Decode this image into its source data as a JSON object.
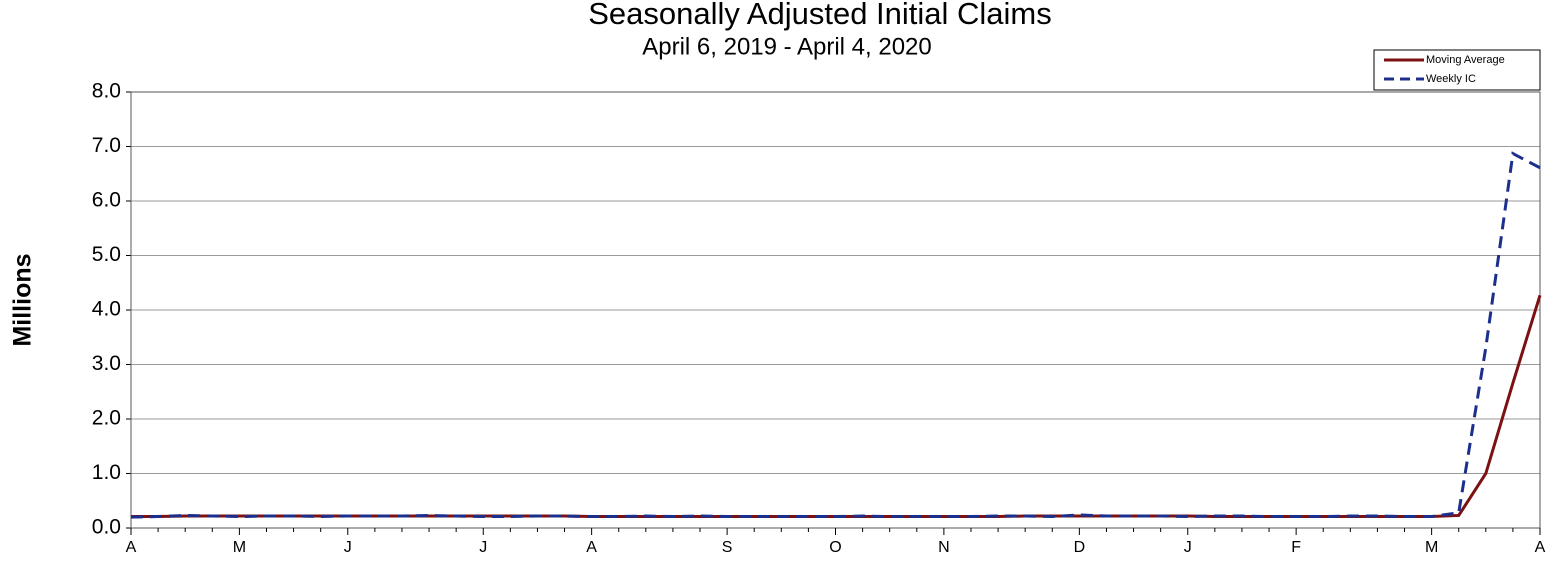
{
  "chart_data": {
    "type": "line",
    "title": "Seasonally Adjusted Initial Claims",
    "subtitle": "April 6, 2019 - April 4, 2020",
    "y_label": "Millions",
    "categories": [
      "A",
      null,
      null,
      null,
      "M",
      null,
      null,
      null,
      "J",
      null,
      null,
      null,
      null,
      "J",
      null,
      null,
      null,
      "A",
      null,
      null,
      null,
      null,
      "S",
      null,
      null,
      null,
      "O",
      null,
      null,
      null,
      "N",
      null,
      null,
      null,
      null,
      "D",
      null,
      null,
      null,
      "J",
      null,
      null,
      null,
      "F",
      null,
      null,
      null,
      null,
      "M",
      null,
      null,
      null,
      "A"
    ],
    "series": [
      {
        "name": "Moving Average",
        "color": "#7b1113",
        "style": "solid",
        "values": [
          0.21,
          0.21,
          0.22,
          0.22,
          0.22,
          0.22,
          0.22,
          0.22,
          0.22,
          0.22,
          0.22,
          0.22,
          0.22,
          0.22,
          0.22,
          0.22,
          0.22,
          0.21,
          0.21,
          0.21,
          0.21,
          0.21,
          0.21,
          0.21,
          0.21,
          0.21,
          0.21,
          0.21,
          0.21,
          0.21,
          0.21,
          0.21,
          0.21,
          0.22,
          0.22,
          0.22,
          0.22,
          0.22,
          0.22,
          0.22,
          0.21,
          0.21,
          0.21,
          0.21,
          0.21,
          0.21,
          0.21,
          0.21,
          0.21,
          0.23,
          1.0,
          2.66,
          4.27
        ]
      },
      {
        "name": "Weekly IC",
        "color": "#1c2f8c",
        "style": "dashed",
        "values": [
          0.2,
          0.21,
          0.23,
          0.22,
          0.21,
          0.22,
          0.22,
          0.21,
          0.22,
          0.22,
          0.22,
          0.23,
          0.22,
          0.21,
          0.21,
          0.22,
          0.22,
          0.21,
          0.21,
          0.22,
          0.21,
          0.22,
          0.21,
          0.21,
          0.21,
          0.21,
          0.21,
          0.22,
          0.21,
          0.21,
          0.21,
          0.21,
          0.22,
          0.22,
          0.21,
          0.24,
          0.22,
          0.22,
          0.22,
          0.21,
          0.22,
          0.22,
          0.21,
          0.21,
          0.21,
          0.22,
          0.22,
          0.21,
          0.21,
          0.28,
          3.31,
          6.87,
          6.61
        ]
      }
    ],
    "ylim": [
      0,
      8
    ],
    "yticks": [
      {
        "value": 0,
        "label": "0.0"
      },
      {
        "value": 1,
        "label": "1.0"
      },
      {
        "value": 2,
        "label": "2.0"
      },
      {
        "value": 3,
        "label": "3.0"
      },
      {
        "value": 4,
        "label": "4.0"
      },
      {
        "value": 5,
        "label": "5.0"
      },
      {
        "value": 6,
        "label": "6.0"
      },
      {
        "value": 7,
        "label": "7.0"
      },
      {
        "value": 8,
        "label": "8.0"
      }
    ],
    "grid": true,
    "legend": "upper right"
  }
}
